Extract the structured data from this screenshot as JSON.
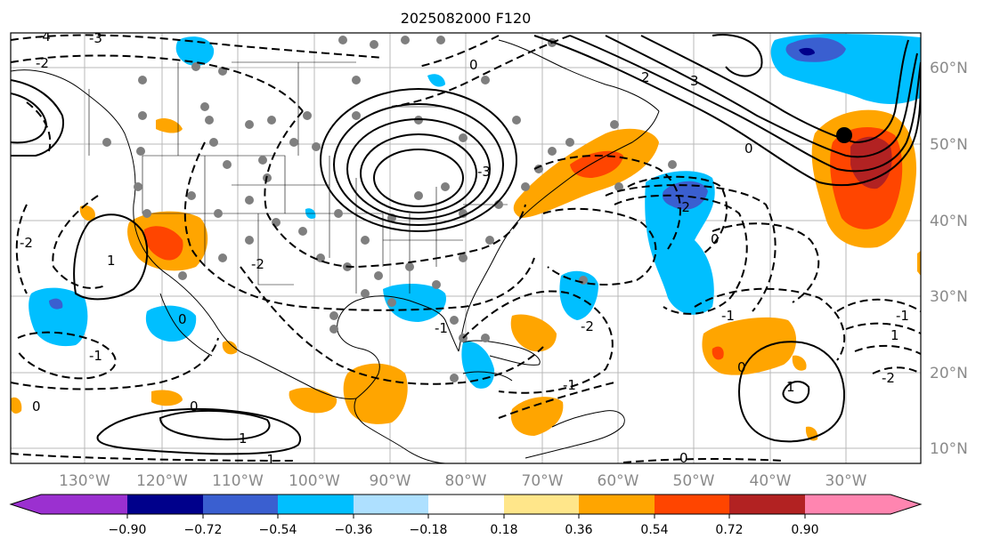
{
  "title": "2025082000 F120",
  "map": {
    "lon_labels": [
      "130°W",
      "120°W",
      "110°W",
      "100°W",
      "90°W",
      "80°W",
      "70°W",
      "60°W",
      "50°W",
      "40°W",
      "30°W"
    ],
    "lat_labels": [
      "60°N",
      "50°N",
      "40°N",
      "30°N",
      "20°N",
      "10°N"
    ],
    "contour_labels": [
      "-4",
      "-3",
      "-2",
      "-2",
      "-1",
      "0",
      "1",
      "2",
      "3",
      "-3",
      "-2",
      "-1",
      "0",
      "-2",
      "-1",
      "-1",
      "0",
      "1",
      "-1",
      "0",
      "1",
      "0",
      "0",
      "-1",
      "1",
      "-2",
      "-2",
      "0",
      "0"
    ]
  },
  "colorbar": {
    "ticks": [
      "−0.90",
      "−0.72",
      "−0.54",
      "−0.36",
      "−0.18",
      "0.18",
      "0.36",
      "0.54",
      "0.72",
      "0.90"
    ],
    "colors": [
      "#9b30d0",
      "#00008b",
      "#3a5fd0",
      "#00bfff",
      "#aee0ff",
      "#ffffff",
      "#ffe68a",
      "#ffa500",
      "#ff4500",
      "#b22222",
      "#ff85b0"
    ]
  }
}
